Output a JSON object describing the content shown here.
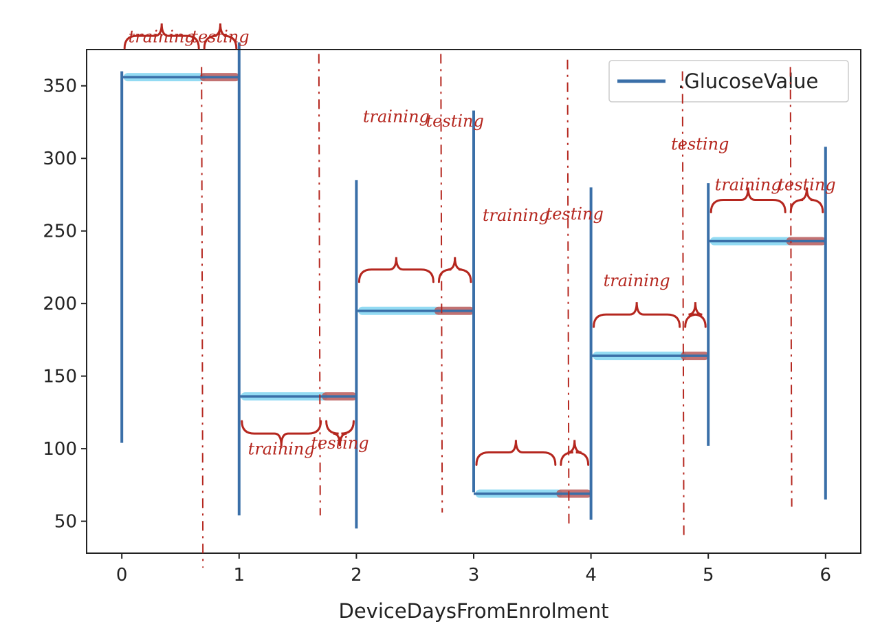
{
  "chart_data": {
    "type": "line",
    "title": "",
    "xlabel": "DeviceDaysFromEnrolment",
    "ylabel": "",
    "xlim": [
      -0.3,
      6.3
    ],
    "ylim": [
      28,
      375
    ],
    "xticks": [
      0,
      1,
      2,
      3,
      4,
      5,
      6
    ],
    "xtick_labels": [
      "0",
      "1",
      "2",
      "3",
      "4",
      "5",
      "6"
    ],
    "yticks": [
      50,
      100,
      150,
      200,
      250,
      300,
      350
    ],
    "ytick_labels": [
      "50",
      "100",
      "150",
      "200",
      "250",
      "300",
      "350"
    ],
    "grid": false,
    "legend": {
      "position": "top-right",
      "entries": [
        ".GlucoseValue"
      ]
    },
    "series": [
      {
        "name": ".GlucoseValue",
        "color": "#3a6fa8",
        "days": [
          {
            "day": 0,
            "spike_low": 104,
            "spike_high": 360,
            "level": 356
          },
          {
            "day": 1,
            "spike_low": 54,
            "spike_high": 380,
            "level": 136
          },
          {
            "day": 2,
            "spike_low": 45,
            "spike_high": 285,
            "level": 195
          },
          {
            "day": 3,
            "spike_low": 70,
            "spike_high": 333,
            "level": 69
          },
          {
            "day": 4,
            "spike_low": 51,
            "spike_high": 280,
            "level": 164
          },
          {
            "day": 5,
            "spike_low": 102,
            "spike_high": 283,
            "level": 243
          },
          {
            "day": 6,
            "spike_low": 65,
            "spike_high": 308,
            "level": null
          }
        ]
      }
    ],
    "annotations": {
      "color": "#b5271f",
      "highlight_training_color": "#6fd0f0",
      "highlight_testing_color": "#b85a5a",
      "training_label": "training",
      "testing_label": "testing",
      "segments": [
        {
          "start": 0,
          "split": 0.68,
          "end": 1,
          "level": 356,
          "label_side": "above",
          "training_label_y": 380,
          "testing_label_y": 380
        },
        {
          "start": 1,
          "split": 1.72,
          "end": 2,
          "level": 136,
          "label_side": "below",
          "training_label_y": 96,
          "testing_label_y": 100
        },
        {
          "start": 2,
          "split": 2.68,
          "end": 3,
          "level": 195,
          "label_side": "above",
          "training_label_y": 325,
          "testing_label_y": 322
        },
        {
          "start": 3,
          "split": 3.72,
          "end": 4,
          "level": 69,
          "label_side": "above",
          "training_label_y": 257,
          "testing_label_y": 258
        },
        {
          "start": 4,
          "split": 4.78,
          "end": 5,
          "level": 164,
          "label_side": "above",
          "training_label_y": 212,
          "testing_label_y": null
        },
        {
          "start": 5,
          "split": 5.68,
          "end": 6,
          "level": 243,
          "label_side": "above",
          "training_label_y": 278,
          "testing_label_y": 278
        }
      ],
      "extra_testing_label": {
        "x": 4.93,
        "y": 306
      },
      "divider_lines": [
        0.68,
        1.72,
        2.68,
        3.72,
        4.78,
        5.7
      ],
      "dashed_vertical_lines": [
        {
          "x": 0.68,
          "y_top": 363,
          "y_bottom": 18
        },
        {
          "x": 1.68,
          "y_top": 372,
          "y_bottom": 54
        },
        {
          "x": 2.72,
          "y_top": 372,
          "y_bottom": 56
        },
        {
          "x": 3.8,
          "y_top": 368,
          "y_bottom": 48
        },
        {
          "x": 4.78,
          "y_top": 360,
          "y_bottom": 40
        },
        {
          "x": 5.7,
          "y_top": 363,
          "y_bottom": 60
        }
      ]
    }
  }
}
